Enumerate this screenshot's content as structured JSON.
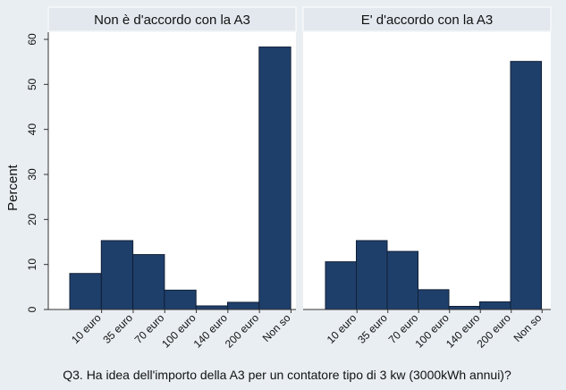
{
  "chart_data": {
    "type": "bar",
    "ylabel": "Percent",
    "xlabel": "Q3. Ha idea dell'importo della A3 per un contatore tipo di 3 kw (3000kWh annui)?",
    "ylim": [
      0,
      60
    ],
    "yticks": [
      0,
      10,
      20,
      30,
      40,
      50,
      60
    ],
    "categories": [
      "10 euro",
      "35 euro",
      "70 euro",
      "100 euro",
      "140 euro",
      "200 euro",
      "Non so"
    ],
    "bar_color": "#1f3f6b",
    "panel_header_color": "#e2e8ee",
    "grid": false,
    "panels": [
      {
        "title": "Non è d'accordo con la A3",
        "values": [
          8,
          15.3,
          12.2,
          4.3,
          0.8,
          1.6,
          58.3
        ]
      },
      {
        "title": "E' d'accordo con la A3",
        "values": [
          10.6,
          15.3,
          12.9,
          4.4,
          0.7,
          1.7,
          55.1
        ]
      }
    ]
  }
}
